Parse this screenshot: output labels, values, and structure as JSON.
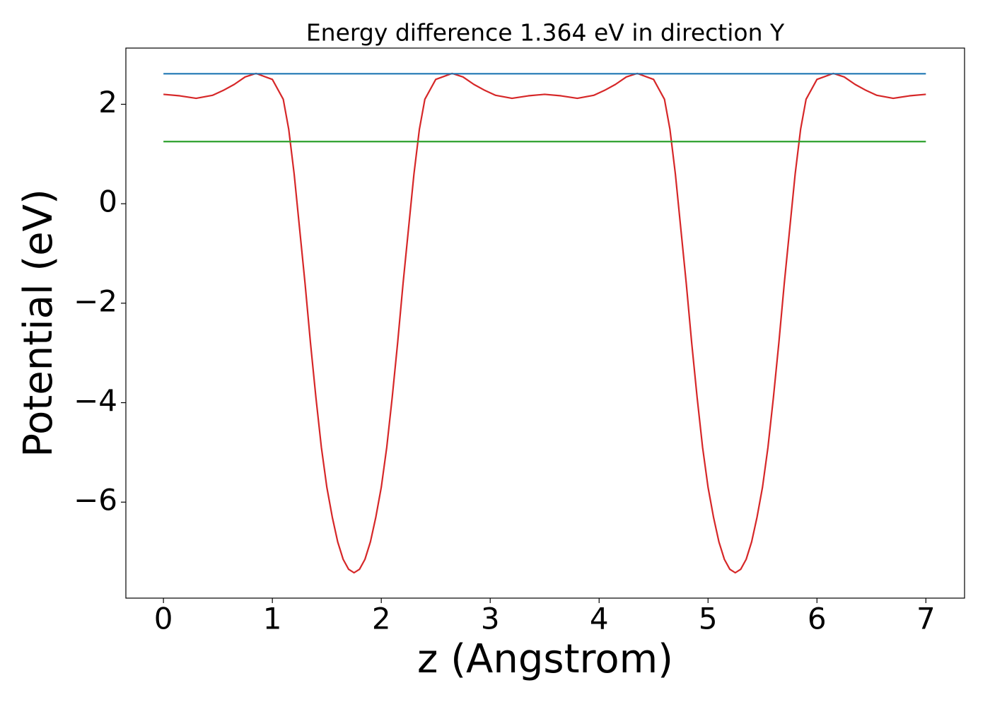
{
  "chart_data": {
    "type": "line",
    "title": "Energy difference 1.364 eV in direction Y",
    "x_label": "z (Angstrom)",
    "y_label": "Potential (eV)",
    "xlim": [
      -0.345,
      7.355
    ],
    "ylim": [
      -7.93,
      3.13
    ],
    "xticks": [
      0,
      1,
      2,
      3,
      4,
      5,
      6,
      7
    ],
    "yticks": [
      {
        "value": -6,
        "label": "−6"
      },
      {
        "value": -4,
        "label": "−4"
      },
      {
        "value": -2,
        "label": "−2"
      },
      0,
      2
    ],
    "series": [
      {
        "color": "#d62728",
        "x": [
          0,
          0.15,
          0.3,
          0.45,
          0.55,
          0.65,
          0.75,
          0.85,
          1.0,
          1.1,
          1.15,
          1.2,
          1.25,
          1.3,
          1.35,
          1.4,
          1.45,
          1.5,
          1.55,
          1.6,
          1.65,
          1.7,
          1.75,
          1.8,
          1.85,
          1.9,
          1.95,
          2.0,
          2.05,
          2.1,
          2.15,
          2.2,
          2.25,
          2.3,
          2.35,
          2.4,
          2.5,
          2.65,
          2.75,
          2.85,
          2.95,
          3.05,
          3.2,
          3.35,
          3.5,
          3.65,
          3.8,
          3.95,
          4.05,
          4.15,
          4.25,
          4.35,
          4.5,
          4.6,
          4.65,
          4.7,
          4.75,
          4.8,
          4.85,
          4.9,
          4.95,
          5.0,
          5.05,
          5.1,
          5.15,
          5.2,
          5.25,
          5.3,
          5.35,
          5.4,
          5.45,
          5.5,
          5.55,
          5.6,
          5.65,
          5.7,
          5.75,
          5.8,
          5.85,
          5.9,
          6.0,
          6.15,
          6.25,
          6.35,
          6.45,
          6.55,
          6.7,
          6.85,
          7.0
        ],
        "values": [
          2.2,
          2.17,
          2.12,
          2.18,
          2.28,
          2.4,
          2.55,
          2.62,
          2.5,
          2.1,
          1.5,
          0.6,
          -0.5,
          -1.6,
          -2.8,
          -3.9,
          -4.9,
          -5.7,
          -6.3,
          -6.8,
          -7.15,
          -7.35,
          -7.42,
          -7.35,
          -7.15,
          -6.8,
          -6.3,
          -5.7,
          -4.9,
          -3.9,
          -2.8,
          -1.6,
          -0.5,
          0.6,
          1.5,
          2.1,
          2.5,
          2.62,
          2.55,
          2.4,
          2.28,
          2.18,
          2.12,
          2.17,
          2.2,
          2.17,
          2.12,
          2.18,
          2.28,
          2.4,
          2.55,
          2.62,
          2.5,
          2.1,
          1.5,
          0.6,
          -0.5,
          -1.6,
          -2.8,
          -3.9,
          -4.9,
          -5.7,
          -6.3,
          -6.8,
          -7.15,
          -7.35,
          -7.42,
          -7.35,
          -7.15,
          -6.8,
          -6.3,
          -5.7,
          -4.9,
          -3.9,
          -2.8,
          -1.6,
          -0.5,
          0.6,
          1.5,
          2.1,
          2.5,
          2.62,
          2.55,
          2.4,
          2.28,
          2.18,
          2.12,
          2.17,
          2.2
        ]
      },
      {
        "color": "#1f77b4",
        "x": [
          0,
          7
        ],
        "values": [
          2.614,
          2.614
        ]
      },
      {
        "color": "#2ca02c",
        "x": [
          0,
          7
        ],
        "values": [
          1.25,
          1.25
        ]
      }
    ]
  }
}
